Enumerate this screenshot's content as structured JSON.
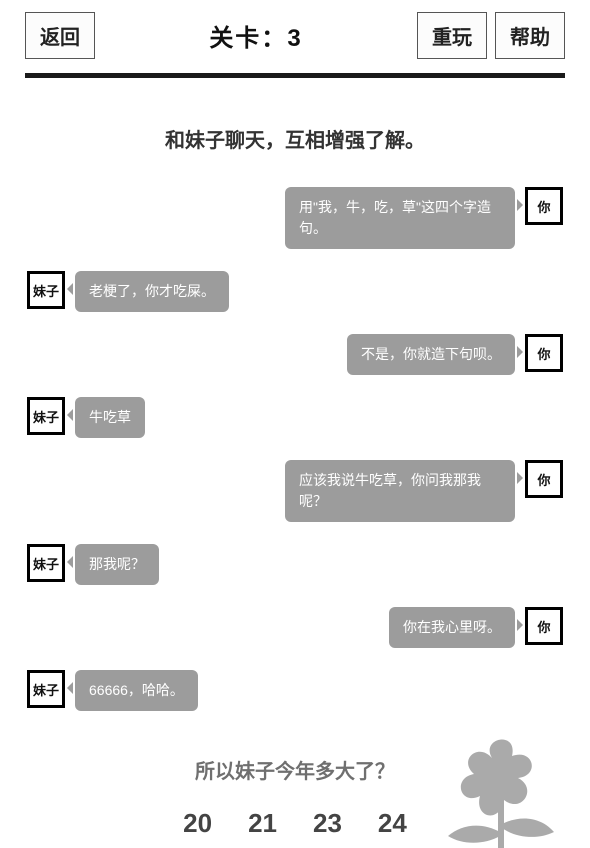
{
  "colors": {
    "background": "#ffffff",
    "divider": "#1a1a1a",
    "button_border": "#555555",
    "button_bg": "#fcfcfc",
    "button_text": "#222222",
    "bubble_bg": "#9c9c9c",
    "bubble_text": "#ffffff",
    "avatar_border": "#000000",
    "question_text": "#6f6f6f",
    "answer_text": "#444444",
    "flower": "#9c9c9c"
  },
  "typography": {
    "button_fontsize": 20,
    "level_fontsize": 24,
    "intro_fontsize": 20,
    "bubble_fontsize": 14,
    "avatar_fontsize": 13,
    "question_fontsize": 20,
    "answer_fontsize": 26
  },
  "topbar": {
    "back_label": "返回",
    "level_prefix": "关卡：",
    "level_number": "3",
    "replay_label": "重玩",
    "help_label": "帮助"
  },
  "intro_text": "和妹子聊天，互相增强了解。",
  "labels": {
    "her": "妹子",
    "you": "你"
  },
  "messages": [
    {
      "side": "right",
      "who": "you",
      "text": "用\"我，牛，吃，草\"这四个字造句。"
    },
    {
      "side": "left",
      "who": "her",
      "text": "老梗了，你才吃屎。"
    },
    {
      "side": "right",
      "who": "you",
      "text": "不是，你就造下句呗。"
    },
    {
      "side": "left",
      "who": "her",
      "text": "牛吃草"
    },
    {
      "side": "right",
      "who": "you",
      "text": "应该我说牛吃草，你问我那我呢？"
    },
    {
      "side": "left",
      "who": "her",
      "text": "那我呢？"
    },
    {
      "side": "right",
      "who": "you",
      "text": "你在我心里呀。"
    },
    {
      "side": "left",
      "who": "her",
      "text": "66666，哈哈。"
    }
  ],
  "question_text": "所以妹子今年多大了？",
  "answers": [
    "20",
    "21",
    "23",
    "24"
  ]
}
